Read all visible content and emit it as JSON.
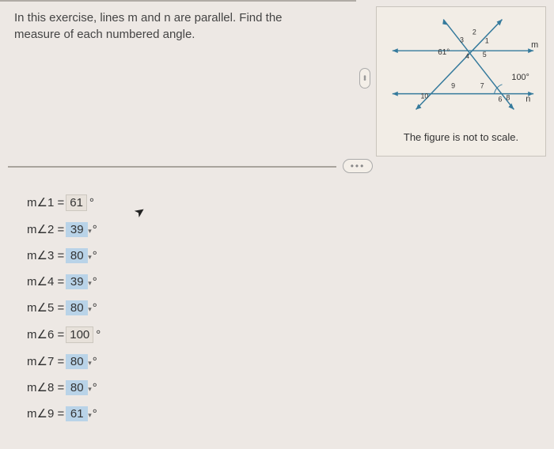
{
  "question": {
    "text_line1": "In this exercise, lines m and n are parallel.  Find the",
    "text_line2": "measure of each numbered angle."
  },
  "figure": {
    "caption": "The figure is not to scale.",
    "given_angle_left": "61°",
    "given_angle_right": "100°",
    "line_m_label": "m",
    "line_n_label": "n",
    "angle_numbers": [
      "1",
      "2",
      "3",
      "4",
      "5",
      "6",
      "7",
      "8",
      "9",
      "10"
    ],
    "line_color": "#357a9c",
    "text_color": "#333",
    "background": "#f2ede6"
  },
  "answers": [
    {
      "num": "1",
      "value": "61",
      "highlighted": false,
      "caret": false
    },
    {
      "num": "2",
      "value": "39",
      "highlighted": true,
      "caret": true
    },
    {
      "num": "3",
      "value": "80",
      "highlighted": true,
      "caret": true
    },
    {
      "num": "4",
      "value": "39",
      "highlighted": true,
      "caret": true
    },
    {
      "num": "5",
      "value": "80",
      "highlighted": true,
      "caret": true
    },
    {
      "num": "6",
      "value": "100",
      "highlighted": false,
      "caret": false
    },
    {
      "num": "7",
      "value": "80",
      "highlighted": true,
      "caret": true
    },
    {
      "num": "8",
      "value": "80",
      "highlighted": true,
      "caret": true
    },
    {
      "num": "9",
      "value": "61",
      "highlighted": true,
      "caret": true
    }
  ],
  "colors": {
    "page_bg": "#ede8e4",
    "panel_bg": "#f2ede6",
    "highlight_input": "#b9d3e8",
    "plain_input": "#e7e1da",
    "divider": "#a8a39c"
  }
}
